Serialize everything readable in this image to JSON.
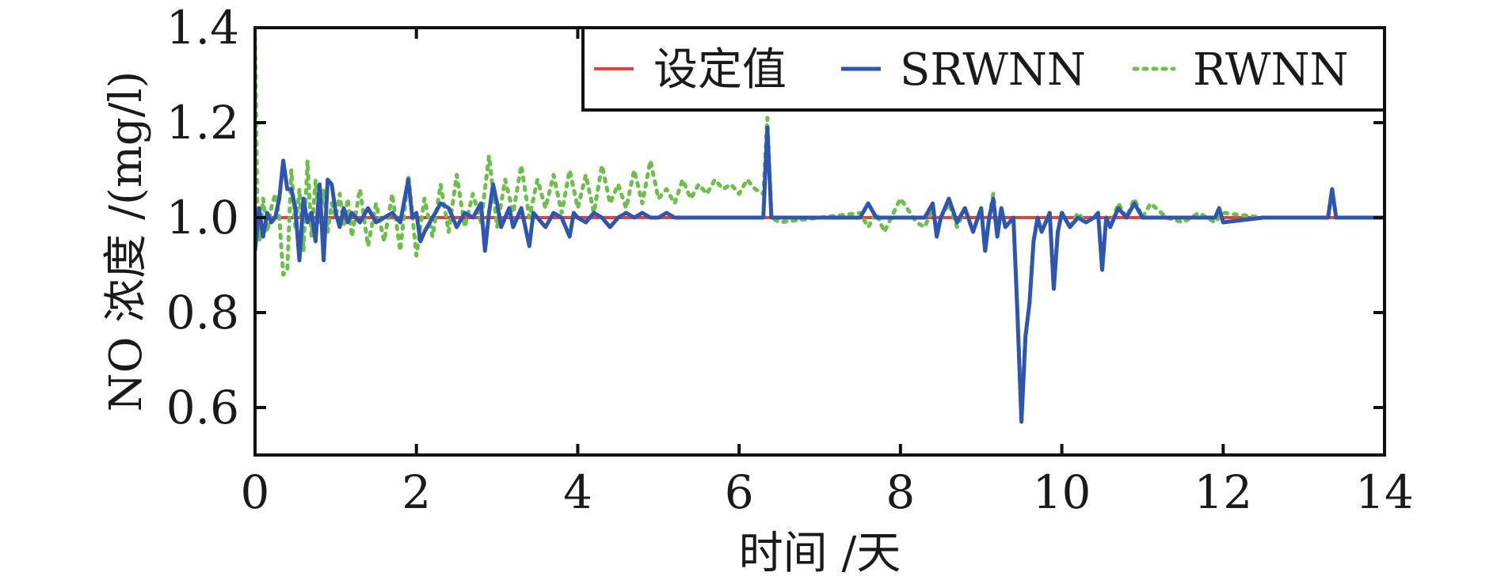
{
  "chart_data": {
    "type": "line",
    "xlabel": "时间 /天",
    "ylabel": "NO 浓度 /(mg/l)",
    "xlim": [
      0,
      14
    ],
    "ylim": [
      0.5,
      1.4
    ],
    "x_ticks": [
      "0",
      "2",
      "4",
      "6",
      "8",
      "10",
      "12",
      "14"
    ],
    "y_ticks": [
      "0.6",
      "0.8",
      "1.0",
      "1.2",
      "1.4"
    ],
    "grid": false,
    "legend_position": "top-right",
    "colors": {
      "setpoint": "#e8413c",
      "srwnn": "#2e56b0",
      "rwnn": "#6cc04a",
      "axes": "#111111"
    },
    "series": [
      {
        "name": "设定值",
        "style": "solid",
        "x": [
          0,
          14
        ],
        "y": [
          1.0,
          1.0
        ]
      },
      {
        "name": "SRWNN",
        "style": "solid",
        "x": [
          0,
          0.05,
          0.1,
          0.15,
          0.2,
          0.25,
          0.3,
          0.35,
          0.4,
          0.45,
          0.5,
          0.55,
          0.6,
          0.65,
          0.7,
          0.75,
          0.8,
          0.85,
          0.9,
          0.95,
          1.0,
          1.05,
          1.1,
          1.15,
          1.2,
          1.3,
          1.4,
          1.5,
          1.6,
          1.7,
          1.8,
          1.9,
          1.95,
          2.0,
          2.05,
          2.1,
          2.2,
          2.3,
          2.4,
          2.5,
          2.6,
          2.7,
          2.8,
          2.85,
          2.9,
          2.95,
          3.0,
          3.05,
          3.1,
          3.15,
          3.2,
          3.3,
          3.4,
          3.45,
          3.5,
          3.6,
          3.7,
          3.8,
          3.9,
          3.95,
          4.0,
          4.1,
          4.2,
          4.3,
          4.4,
          4.5,
          4.6,
          4.7,
          4.8,
          4.9,
          5.0,
          5.1,
          5.2,
          5.4,
          5.6,
          5.8,
          6.0,
          6.2,
          6.3,
          6.35,
          6.4,
          6.5,
          7.0,
          7.5,
          7.6,
          7.7,
          8.0,
          8.3,
          8.4,
          8.45,
          8.5,
          8.6,
          8.7,
          8.8,
          8.9,
          9.0,
          9.05,
          9.1,
          9.15,
          9.2,
          9.25,
          9.3,
          9.35,
          9.4,
          9.45,
          9.5,
          9.55,
          9.6,
          9.65,
          9.7,
          9.75,
          9.8,
          9.85,
          9.9,
          9.95,
          10.0,
          10.1,
          10.2,
          10.3,
          10.4,
          10.45,
          10.5,
          10.55,
          10.6,
          10.7,
          10.8,
          10.9,
          11.0,
          11.1,
          11.3,
          11.5,
          11.7,
          11.9,
          11.95,
          12.0,
          12.5,
          13.0,
          13.3,
          13.35,
          13.4,
          13.8,
          14.0
        ],
        "y": [
          0.93,
          1.02,
          0.96,
          1.01,
          0.99,
          1.0,
          1.04,
          1.12,
          1.06,
          1.06,
          1.02,
          0.91,
          1.04,
          0.99,
          1.01,
          0.95,
          1.07,
          0.91,
          1.08,
          1.07,
          1.01,
          0.98,
          1.02,
          0.99,
          1.01,
          0.99,
          1.02,
          0.99,
          1.0,
          1.01,
          0.99,
          1.08,
          1.0,
          1.01,
          0.95,
          0.97,
          1.0,
          1.03,
          1.02,
          0.98,
          1.01,
          1.0,
          1.03,
          0.93,
          1.01,
          1.07,
          1.03,
          0.98,
          1.0,
          1.02,
          0.98,
          1.02,
          0.94,
          1.01,
          1.0,
          0.98,
          1.01,
          1.0,
          0.96,
          1.01,
          1.0,
          0.99,
          1.01,
          1.0,
          0.98,
          1.0,
          1.01,
          1.0,
          1.01,
          1.0,
          1.0,
          1.01,
          1.0,
          1.0,
          1.0,
          1.0,
          1.0,
          1.0,
          1.0,
          1.19,
          1.0,
          1.0,
          1.0,
          1.0,
          1.03,
          1.0,
          1.0,
          1.0,
          1.03,
          0.96,
          1.0,
          1.04,
          0.99,
          1.02,
          0.97,
          1.02,
          0.93,
          1.0,
          1.04,
          0.96,
          1.02,
          0.98,
          0.99,
          1.0,
          0.8,
          0.57,
          0.75,
          0.82,
          0.95,
          1.0,
          0.97,
          0.99,
          1.01,
          0.85,
          0.97,
          1.01,
          0.98,
          1.0,
          0.99,
          1.0,
          1.01,
          0.89,
          1.0,
          0.98,
          1.02,
          1.0,
          1.03,
          1.0,
          1.0,
          1.0,
          1.0,
          1.0,
          1.0,
          1.02,
          0.99,
          1.0,
          1.0,
          1.0,
          1.06,
          1.0,
          1.0,
          1.0
        ]
      },
      {
        "name": "RWNN",
        "style": "dotted",
        "x": [
          0,
          0.03,
          0.06,
          0.1,
          0.15,
          0.2,
          0.25,
          0.3,
          0.35,
          0.4,
          0.45,
          0.5,
          0.55,
          0.6,
          0.65,
          0.7,
          0.75,
          0.8,
          0.85,
          0.9,
          0.95,
          1.0,
          1.05,
          1.1,
          1.15,
          1.2,
          1.3,
          1.4,
          1.5,
          1.6,
          1.7,
          1.8,
          1.9,
          2.0,
          2.1,
          2.2,
          2.3,
          2.4,
          2.5,
          2.6,
          2.7,
          2.8,
          2.9,
          3.0,
          3.1,
          3.2,
          3.3,
          3.4,
          3.5,
          3.6,
          3.7,
          3.8,
          3.9,
          4.0,
          4.1,
          4.2,
          4.3,
          4.4,
          4.5,
          4.6,
          4.7,
          4.8,
          4.9,
          5.0,
          5.1,
          5.2,
          5.3,
          5.4,
          5.5,
          5.6,
          5.7,
          5.8,
          5.9,
          6.0,
          6.1,
          6.2,
          6.3,
          6.35,
          6.4,
          6.5,
          7.0,
          7.5,
          7.6,
          7.7,
          7.8,
          8.0,
          8.2,
          8.3,
          8.4,
          8.45,
          8.5,
          8.6,
          8.7,
          8.8,
          8.9,
          9.0,
          9.05,
          9.1,
          9.15,
          9.2,
          9.25,
          9.3,
          9.35,
          9.4,
          9.45,
          9.5,
          9.55,
          9.6,
          9.65,
          9.7,
          9.75,
          9.8,
          9.85,
          9.9,
          9.95,
          10.0,
          10.1,
          10.2,
          10.3,
          10.4,
          10.45,
          10.5,
          10.55,
          10.6,
          10.7,
          10.8,
          10.9,
          11.0,
          11.1,
          11.3,
          11.5,
          11.7,
          11.9,
          12.0,
          12.5,
          13.0,
          13.3,
          13.35,
          13.4,
          13.8,
          14.0
        ],
        "y": [
          1.38,
          1.0,
          0.95,
          1.04,
          0.97,
          1.02,
          1.05,
          1.0,
          0.88,
          0.89,
          1.1,
          0.98,
          1.06,
          0.93,
          1.12,
          0.96,
          1.08,
          0.99,
          1.06,
          0.97,
          1.03,
          1.0,
          1.05,
          0.98,
          1.04,
          0.96,
          1.06,
          0.94,
          1.03,
          0.95,
          1.05,
          0.93,
          1.09,
          0.92,
          1.04,
          0.96,
          1.07,
          0.97,
          1.09,
          0.98,
          1.05,
          0.99,
          1.13,
          0.98,
          1.08,
          1.01,
          1.11,
          1.0,
          1.08,
          1.02,
          1.09,
          1.01,
          1.1,
          1.02,
          1.09,
          1.01,
          1.11,
          1.03,
          1.07,
          1.02,
          1.1,
          1.03,
          1.12,
          1.04,
          1.06,
          1.03,
          1.08,
          1.04,
          1.07,
          1.05,
          1.08,
          1.06,
          1.07,
          1.05,
          1.08,
          1.06,
          1.05,
          1.21,
          1.0,
          0.99,
          1.0,
          1.01,
          0.98,
          1.01,
          0.97,
          1.04,
          0.99,
          0.98,
          1.02,
          0.97,
          1.0,
          1.03,
          0.98,
          1.02,
          0.97,
          1.02,
          0.93,
          1.0,
          1.05,
          0.96,
          1.02,
          0.98,
          0.99,
          1.0,
          0.8,
          0.57,
          0.75,
          0.82,
          0.95,
          1.0,
          0.97,
          0.99,
          1.01,
          0.85,
          0.97,
          1.01,
          0.98,
          1.01,
          0.99,
          1.0,
          1.01,
          0.89,
          1.0,
          0.98,
          1.03,
          1.0,
          1.04,
          1.0,
          1.03,
          1.0,
          0.99,
          1.01,
          0.99,
          1.01,
          1.0,
          1.0,
          1.0,
          1.06,
          1.0,
          1.0,
          1.0
        ]
      }
    ]
  }
}
